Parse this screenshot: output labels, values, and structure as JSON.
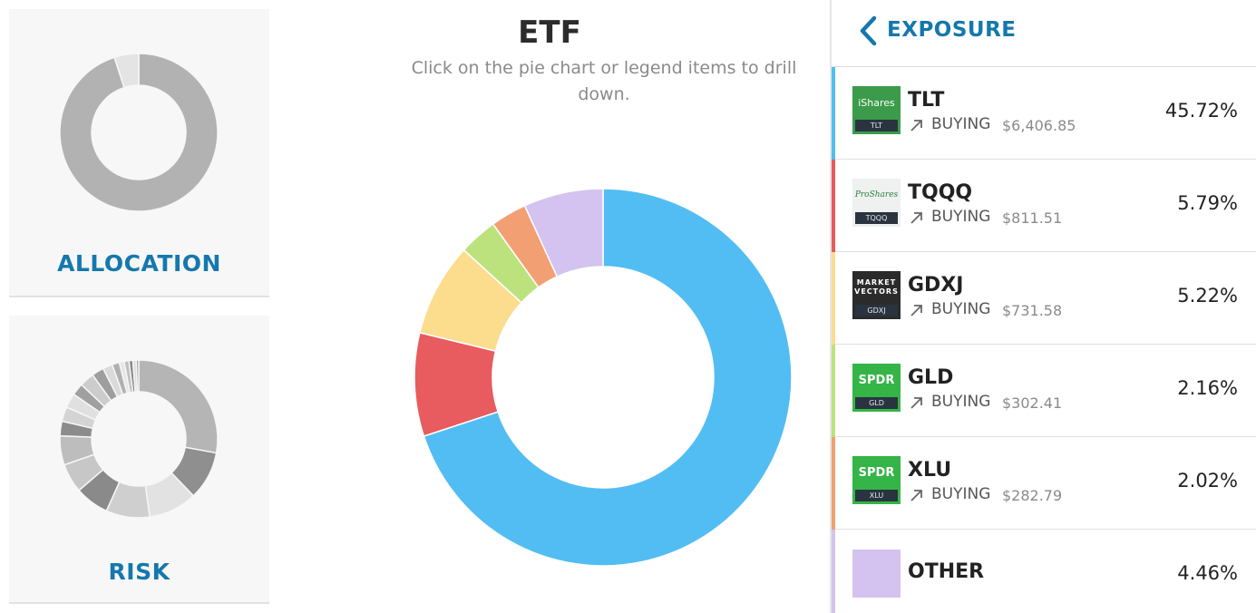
{
  "cards": {
    "allocation": {
      "label": "ALLOCATION",
      "slices": [
        {
          "value": 95,
          "color": "#b2b2b2"
        },
        {
          "value": 5,
          "color": "#e4e4e4"
        }
      ]
    },
    "risk": {
      "label": "RISK",
      "slices": [
        {
          "value": 28,
          "color": "#b5b5b5"
        },
        {
          "value": 10,
          "color": "#8f8f8f"
        },
        {
          "value": 10,
          "color": "#e2e2e2"
        },
        {
          "value": 9,
          "color": "#cfcfcf"
        },
        {
          "value": 7,
          "color": "#8a8a8a"
        },
        {
          "value": 6,
          "color": "#c7c7c7"
        },
        {
          "value": 6,
          "color": "#bdbdbd"
        },
        {
          "value": 3,
          "color": "#8c8c8c"
        },
        {
          "value": 3,
          "color": "#d4d4d4"
        },
        {
          "value": 3,
          "color": "#e0e0e0"
        },
        {
          "value": 2.5,
          "color": "#a0a0a0"
        },
        {
          "value": 3,
          "color": "#cccccc"
        },
        {
          "value": 2.5,
          "color": "#9e9e9e"
        },
        {
          "value": 2,
          "color": "#dadada"
        },
        {
          "value": 1.5,
          "color": "#b0b0b0"
        },
        {
          "value": 1,
          "color": "#e6e6e6"
        },
        {
          "value": 1,
          "color": "#c0c0c0"
        },
        {
          "value": 0.8,
          "color": "#888888"
        },
        {
          "value": 0.7,
          "color": "#dddddd"
        },
        {
          "value": 0.5,
          "color": "#9a9a9a"
        }
      ]
    }
  },
  "center": {
    "title": "ETF",
    "subtitle": "Click on the pie chart or legend items to drill down."
  },
  "chart_data": {
    "type": "pie",
    "donut": true,
    "categories": [
      "TLT",
      "TQQQ",
      "GDXJ",
      "GLD",
      "XLU",
      "OTHER"
    ],
    "values": [
      45.72,
      5.79,
      5.22,
      2.16,
      2.02,
      4.46
    ],
    "colors": [
      "#52bdf3",
      "#e85b5e",
      "#fcdc8d",
      "#bce27e",
      "#f29f73",
      "#d4c3f0"
    ],
    "title": "ETF"
  },
  "panel": {
    "title": "EXPOSURE",
    "items": [
      {
        "ticker": "TLT",
        "action": "BUYING",
        "amount": "$6,406.85",
        "pct": "45.72%",
        "color": "#52bdf3",
        "logo_text": "iShares",
        "logo_code": "TLT",
        "logo_bg": "#3b9b4a",
        "logo_fg": "#ffffff"
      },
      {
        "ticker": "TQQQ",
        "action": "BUYING",
        "amount": "$811.51",
        "pct": "5.79%",
        "color": "#e85b5e",
        "logo_text": "ProShares",
        "logo_code": "TQQQ",
        "logo_bg": "#eef1ef",
        "logo_fg": "#2e7d42"
      },
      {
        "ticker": "GDXJ",
        "action": "BUYING",
        "amount": "$731.58",
        "pct": "5.22%",
        "color": "#fcdc8d",
        "logo_text": "MARKET VECTORS",
        "logo_code": "GDXJ",
        "logo_bg": "#2b2b2b",
        "logo_fg": "#ffffff"
      },
      {
        "ticker": "GLD",
        "action": "BUYING",
        "amount": "$302.41",
        "pct": "2.16%",
        "color": "#bce27e",
        "logo_text": "SPDR",
        "logo_code": "GLD",
        "logo_bg": "#35b447",
        "logo_fg": "#ffffff"
      },
      {
        "ticker": "XLU",
        "action": "BUYING",
        "amount": "$282.79",
        "pct": "2.02%",
        "color": "#f29f73",
        "logo_text": "SPDR",
        "logo_code": "XLU",
        "logo_bg": "#35b447",
        "logo_fg": "#ffffff"
      }
    ],
    "other": {
      "label": "OTHER",
      "pct": "4.46%",
      "color": "#d4c3f0"
    }
  }
}
